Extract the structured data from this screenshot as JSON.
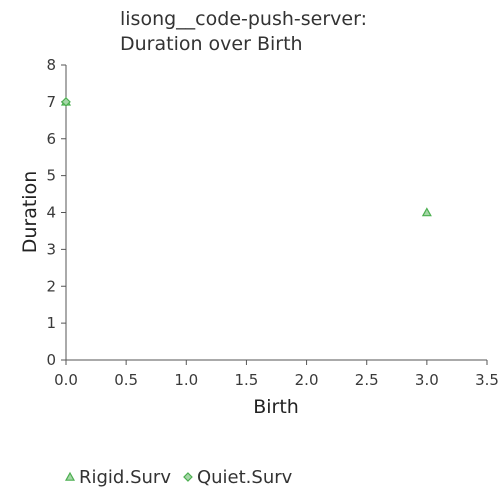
{
  "chart_data": {
    "type": "scatter",
    "title_lines": [
      "lisong__code-push-server:",
      "Duration over Birth"
    ],
    "xlabel": "Birth",
    "ylabel": "Duration",
    "xlim": [
      0,
      3.5
    ],
    "ylim": [
      0,
      8
    ],
    "x_ticks": [
      "0.0",
      "0.5",
      "1.0",
      "1.5",
      "2.0",
      "2.5",
      "3.0",
      "3.5"
    ],
    "y_ticks": [
      "0",
      "1",
      "2",
      "3",
      "4",
      "5",
      "6",
      "7",
      "8"
    ],
    "grid": false,
    "legend_position": "bottom",
    "series": [
      {
        "name": "Rigid.Surv",
        "marker": "triangle",
        "stroke": "#4caf50",
        "fill": "#a5d6a7",
        "points": [
          {
            "x": 0,
            "y": 7
          },
          {
            "x": 3,
            "y": 4
          }
        ]
      },
      {
        "name": "Quiet.Surv",
        "marker": "diamond",
        "stroke": "#4caf50",
        "fill": "#a5d6a7",
        "points": [
          {
            "x": 0,
            "y": 7
          }
        ]
      }
    ]
  }
}
